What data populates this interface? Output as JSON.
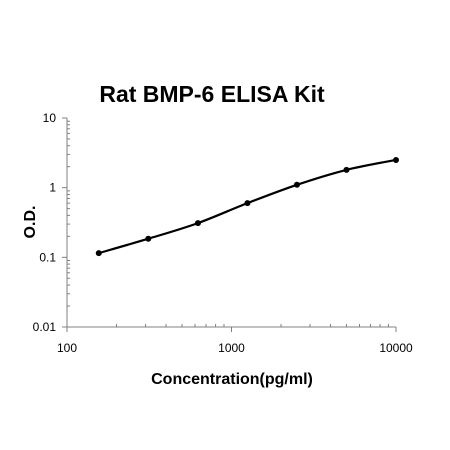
{
  "chart_data": {
    "type": "line",
    "title": "Rat BMP-6 ELISA Kit",
    "xlabel": "Concentration(pg/ml)",
    "ylabel": "O.D.",
    "x_scale": "log",
    "y_scale": "log",
    "xlim": [
      100,
      10000
    ],
    "ylim": [
      0.01,
      10
    ],
    "x_ticks": [
      100,
      1000,
      10000
    ],
    "x_tick_labels": [
      "100",
      "1000",
      "10000"
    ],
    "y_ticks": [
      10,
      1,
      0.1,
      0.01
    ],
    "y_tick_labels": [
      "10",
      "1",
      "0.1",
      "0.01"
    ],
    "grid": false,
    "legend": "none",
    "series": [
      {
        "x": [
          156,
          312,
          625,
          1250,
          2500,
          5000,
          10000
        ],
        "y": [
          0.115,
          0.185,
          0.31,
          0.6,
          1.1,
          1.8,
          2.5
        ]
      }
    ],
    "colors": {
      "line": "#000000",
      "axis": "#808080"
    }
  }
}
